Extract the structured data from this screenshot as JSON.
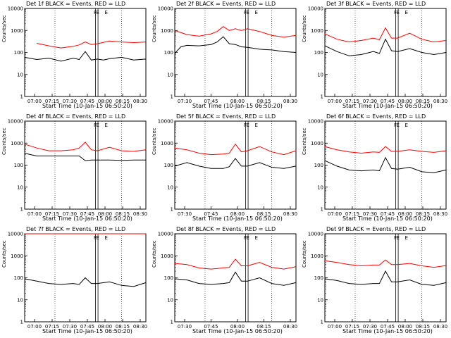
{
  "chart_data": [
    {
      "type": "line",
      "title": "Det 1f BLACK = Events, RED = LLD",
      "xlabel": "Start Time (10-Jan-15 06:50:20)",
      "ylabel": "Counts/sec",
      "y_scale": "log",
      "ylim": [
        1,
        10000
      ],
      "x_ticks": [
        "07:00",
        "07:15",
        "07:30",
        "07:45",
        "08:00",
        "08:15",
        "08:30"
      ],
      "y_ticks": [
        "1",
        "10",
        "100",
        "1000",
        "10000"
      ],
      "markers": [
        "F",
        "E",
        "E"
      ],
      "series": [
        {
          "color": "#000000",
          "x_min": [
            0,
            10,
            20,
            30,
            40,
            45,
            50,
            55,
            60,
            65,
            70,
            80,
            90,
            100
          ],
          "values": [
            60,
            48,
            55,
            40,
            55,
            48,
            110,
            45,
            50,
            45,
            52,
            60,
            45,
            50
          ]
        },
        {
          "color": "#ff0000",
          "x_min": [
            10,
            20,
            30,
            40,
            45,
            50,
            55,
            60,
            70,
            80,
            90,
            100
          ],
          "values": [
            260,
            200,
            160,
            190,
            220,
            300,
            230,
            250,
            330,
            300,
            280,
            300
          ]
        }
      ]
    },
    {
      "type": "line",
      "title": "Det 2f BLACK = Events, RED = LLD",
      "xlabel": "Start Time (10-Jan-15 06:50:20)",
      "ylabel": "Counts/sec",
      "y_scale": "log",
      "ylim": [
        1,
        10000
      ],
      "x_ticks": [
        "07:30",
        "07:45",
        "08:00",
        "08:15",
        "08:30"
      ],
      "y_ticks": [
        "1",
        "10",
        "100",
        "1000",
        "10000"
      ],
      "markers": [
        "F",
        "E",
        "E"
      ],
      "series": [
        {
          "color": "#000000",
          "x_min": [
            0,
            5,
            10,
            20,
            30,
            35,
            40,
            45,
            50,
            55,
            60,
            70,
            80,
            90,
            100
          ],
          "values": [
            90,
            180,
            210,
            200,
            230,
            300,
            520,
            250,
            230,
            180,
            170,
            140,
            130,
            110,
            100
          ]
        },
        {
          "color": "#ff0000",
          "x_min": [
            0,
            10,
            20,
            30,
            35,
            40,
            45,
            50,
            55,
            60,
            70,
            80,
            90,
            100
          ],
          "values": [
            1000,
            650,
            550,
            700,
            900,
            1500,
            1000,
            1200,
            1000,
            1200,
            900,
            600,
            500,
            600
          ]
        }
      ]
    },
    {
      "type": "line",
      "title": "Det 3f BLACK = Events, RED = LLD",
      "xlabel": "Start Time (10-Jan-15 06:50:20)",
      "ylabel": "Counts/sec",
      "y_scale": "log",
      "ylim": [
        1,
        10000
      ],
      "x_ticks": [
        "07:00",
        "07:15",
        "07:30",
        "07:45",
        "08:00",
        "08:15",
        "08:30"
      ],
      "y_ticks": [
        "1",
        "10",
        "100",
        "1000",
        "10000"
      ],
      "markers": [
        "F",
        "E",
        "E"
      ],
      "series": [
        {
          "color": "#000000",
          "x_min": [
            0,
            10,
            20,
            30,
            40,
            45,
            50,
            55,
            60,
            70,
            80,
            90,
            100
          ],
          "values": [
            200,
            110,
            70,
            80,
            110,
            90,
            400,
            120,
            110,
            150,
            100,
            80,
            100
          ]
        },
        {
          "color": "#ff0000",
          "x_min": [
            0,
            10,
            20,
            30,
            40,
            45,
            50,
            55,
            60,
            70,
            80,
            90,
            100
          ],
          "values": [
            700,
            400,
            300,
            350,
            450,
            380,
            1300,
            450,
            450,
            750,
            400,
            300,
            350
          ]
        }
      ]
    },
    {
      "type": "line",
      "title": "Det 4f BLACK = Events, RED = LLD",
      "xlabel": "Start Time (10-Jan-15 06:50:20)",
      "ylabel": "Counts/sec",
      "y_scale": "log",
      "ylim": [
        1,
        10000
      ],
      "x_ticks": [
        "07:00",
        "07:15",
        "07:30",
        "07:45",
        "08:00",
        "08:15",
        "08:30"
      ],
      "y_ticks": [
        "1",
        "10",
        "100",
        "1000",
        "10000"
      ],
      "markers": [
        "F",
        "E",
        "E"
      ],
      "series": [
        {
          "color": "#000000",
          "x_min": [
            0,
            5,
            10,
            20,
            30,
            40,
            45,
            50,
            55,
            60,
            70,
            80,
            90,
            100
          ],
          "values": [
            350,
            300,
            260,
            260,
            260,
            260,
            260,
            160,
            170,
            170,
            170,
            165,
            170,
            170
          ]
        },
        {
          "color": "#ff0000",
          "x_min": [
            0,
            10,
            20,
            30,
            40,
            45,
            50,
            55,
            60,
            70,
            80,
            90,
            100
          ],
          "values": [
            900,
            600,
            450,
            450,
            500,
            600,
            1100,
            500,
            450,
            650,
            450,
            420,
            500
          ]
        }
      ]
    },
    {
      "type": "line",
      "title": "Det 5f BLACK = Events, RED = LLD",
      "xlabel": "Start Time (10-Jan-15 06:50:20)",
      "ylabel": "Counts/sec",
      "y_scale": "log",
      "ylim": [
        1,
        10000
      ],
      "x_ticks": [
        "07:30",
        "07:45",
        "08:00",
        "08:15",
        "08:30"
      ],
      "y_ticks": [
        "1",
        "10",
        "100",
        "1000",
        "10000"
      ],
      "markers": [
        "F",
        "E",
        "E"
      ],
      "series": [
        {
          "color": "#000000",
          "x_min": [
            0,
            10,
            20,
            30,
            40,
            45,
            50,
            55,
            60,
            70,
            80,
            90,
            100
          ],
          "values": [
            90,
            130,
            90,
            70,
            70,
            85,
            200,
            90,
            90,
            130,
            80,
            70,
            90
          ]
        },
        {
          "color": "#ff0000",
          "x_min": [
            0,
            10,
            20,
            30,
            40,
            45,
            50,
            55,
            60,
            70,
            80,
            90,
            100
          ],
          "values": [
            600,
            500,
            350,
            300,
            320,
            350,
            900,
            400,
            450,
            700,
            400,
            300,
            450
          ]
        }
      ]
    },
    {
      "type": "line",
      "title": "Det 6f BLACK = Events, RED = LLD",
      "xlabel": "Start Time (10-Jan-15 06:50:20)",
      "ylabel": "Counts/sec",
      "y_scale": "log",
      "ylim": [
        1,
        10000
      ],
      "x_ticks": [
        "07:00",
        "07:15",
        "07:30",
        "07:45",
        "08:00",
        "08:15",
        "08:30"
      ],
      "y_ticks": [
        "1",
        "10",
        "100",
        "1000",
        "10000"
      ],
      "markers": [
        "F",
        "E",
        "E"
      ],
      "series": [
        {
          "color": "#000000",
          "x_min": [
            0,
            10,
            20,
            30,
            40,
            45,
            50,
            55,
            60,
            70,
            80,
            90,
            100
          ],
          "values": [
            160,
            90,
            60,
            55,
            60,
            55,
            220,
            70,
            65,
            80,
            50,
            45,
            60
          ]
        },
        {
          "color": "#ff0000",
          "x_min": [
            0,
            10,
            20,
            30,
            40,
            45,
            50,
            55,
            60,
            70,
            80,
            90,
            100
          ],
          "values": [
            700,
            500,
            400,
            350,
            400,
            380,
            700,
            420,
            420,
            500,
            420,
            380,
            450
          ]
        }
      ]
    },
    {
      "type": "line",
      "title": "Det 7f BLACK = Events, RED = LLD",
      "xlabel": "Start Time (10-Jan-15 06:50:20)",
      "ylabel": "Counts/sec",
      "y_scale": "log",
      "ylim": [
        1,
        10000
      ],
      "x_ticks": [
        "07:00",
        "07:15",
        "07:30",
        "07:45",
        "08:00",
        "08:15",
        "08:30"
      ],
      "y_ticks": [
        "1",
        "10",
        "100",
        "1000",
        "10000"
      ],
      "markers": [
        "F",
        "E",
        "E"
      ],
      "series": [
        {
          "color": "#000000",
          "x_min": [
            0,
            10,
            20,
            30,
            40,
            45,
            50,
            55,
            60,
            70,
            80,
            90,
            100
          ],
          "values": [
            90,
            70,
            55,
            50,
            55,
            50,
            100,
            55,
            55,
            65,
            45,
            40,
            60
          ]
        },
        {
          "color": "#ff0000",
          "x_min": [
            0,
            10,
            20,
            30,
            40,
            45,
            50,
            55,
            60,
            70,
            80,
            90,
            100
          ],
          "values": [
            10000,
            10000,
            10000,
            10000,
            10000,
            10000,
            10000,
            10000,
            10000,
            10000,
            10000,
            10000,
            10000
          ]
        }
      ]
    },
    {
      "type": "line",
      "title": "Det 8f BLACK = Events, RED = LLD",
      "xlabel": "Start Time (10-Jan-15 06:50:20)",
      "ylabel": "Counts/sec",
      "y_scale": "log",
      "ylim": [
        1,
        10000
      ],
      "x_ticks": [
        "07:30",
        "07:45",
        "08:00",
        "08:15",
        "08:30"
      ],
      "y_ticks": [
        "1",
        "10",
        "100",
        "1000",
        "10000"
      ],
      "markers": [
        "F",
        "E",
        "E"
      ],
      "series": [
        {
          "color": "#000000",
          "x_min": [
            0,
            10,
            20,
            30,
            40,
            45,
            50,
            55,
            60,
            70,
            80,
            90,
            100
          ],
          "values": [
            90,
            80,
            55,
            50,
            55,
            60,
            180,
            70,
            70,
            100,
            55,
            45,
            60
          ]
        },
        {
          "color": "#ff0000",
          "x_min": [
            0,
            10,
            20,
            30,
            40,
            45,
            50,
            55,
            60,
            70,
            80,
            90,
            100
          ],
          "values": [
            450,
            400,
            280,
            250,
            280,
            300,
            700,
            350,
            350,
            500,
            300,
            250,
            320
          ]
        }
      ]
    },
    {
      "type": "line",
      "title": "Det 9f BLACK = Events, RED = LLD",
      "xlabel": "Start Time (10-Jan-15 06:50:20)",
      "ylabel": "Counts/sec",
      "y_scale": "log",
      "ylim": [
        1,
        10000
      ],
      "x_ticks": [
        "07:00",
        "07:15",
        "07:30",
        "07:45",
        "08:00",
        "08:15",
        "08:30"
      ],
      "y_ticks": [
        "1",
        "10",
        "100",
        "1000",
        "10000"
      ],
      "markers": [
        "F",
        "E",
        "E"
      ],
      "series": [
        {
          "color": "#000000",
          "x_min": [
            0,
            10,
            20,
            30,
            40,
            45,
            50,
            55,
            60,
            70,
            80,
            90,
            100
          ],
          "values": [
            90,
            75,
            55,
            50,
            55,
            55,
            200,
            65,
            65,
            80,
            50,
            45,
            60
          ]
        },
        {
          "color": "#ff0000",
          "x_min": [
            0,
            10,
            20,
            30,
            40,
            45,
            50,
            55,
            60,
            70,
            80,
            90,
            100
          ],
          "values": [
            600,
            500,
            400,
            350,
            380,
            380,
            650,
            400,
            400,
            450,
            350,
            300,
            360
          ]
        }
      ]
    }
  ]
}
